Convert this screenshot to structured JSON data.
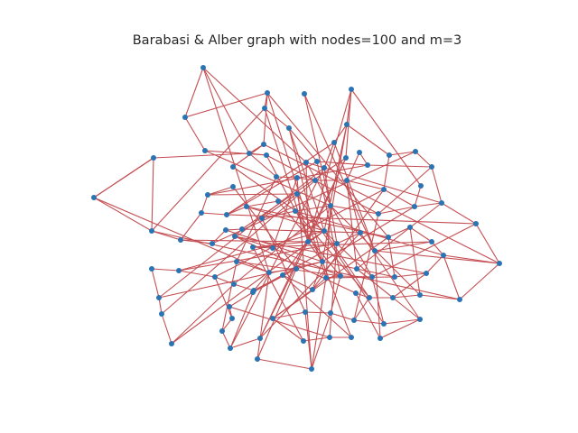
{
  "title": "Barabasi & Alber graph with nodes=100 and m=3",
  "colors": {
    "edge": "#c44e52",
    "node": "#2a74b4",
    "title": "#262626"
  },
  "graph": {
    "node_count": 100,
    "edges_per_new_node": 3
  }
}
